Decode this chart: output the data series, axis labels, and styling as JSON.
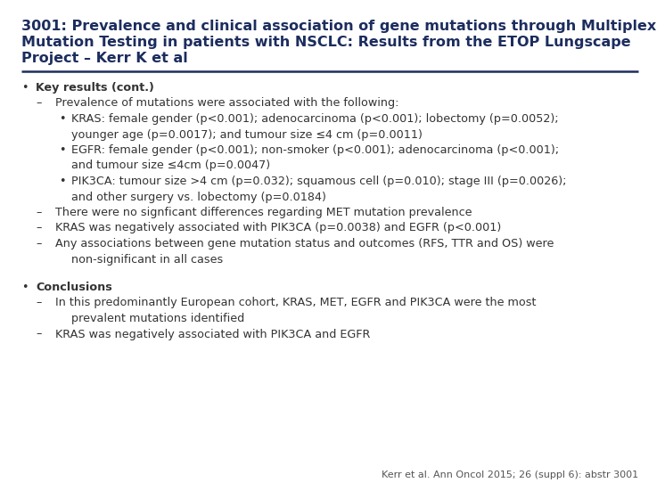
{
  "title_lines": [
    "3001: Prevalence and clinical association of gene mutations through Multiplex",
    "Mutation Testing in patients with NSCLC: Results from the ETOP Lungscape",
    "Project – Kerr K et al"
  ],
  "title_color": "#1c2d5e",
  "title_fontsize": 11.5,
  "separator_color": "#1c2d5e",
  "background_color": "#ffffff",
  "body_fontsize": 9.2,
  "body_color": "#333333",
  "footer": "Kerr et al. Ann Oncol 2015; 26 (suppl 6): abstr 3001",
  "footer_fontsize": 8.0,
  "footer_color": "#555555",
  "sections": [
    {
      "bullet": "•",
      "label": "Key results (cont.)",
      "bold": true,
      "indent": 0
    },
    {
      "bullet": "–",
      "label": "Prevalence of mutations were associated with the following:",
      "bold": false,
      "indent": 1
    },
    {
      "bullet": "•",
      "label": "KRAS: female gender (p<0.001); adenocarcinoma (p<0.001); lobectomy (p=0.0052);",
      "bold": false,
      "indent": 2
    },
    {
      "bullet": "",
      "label": "younger age (p=0.0017); and tumour size ≤4 cm (p=0.0011)",
      "bold": false,
      "indent": 3
    },
    {
      "bullet": "•",
      "label": "EGFR: female gender (p<0.001); non-smoker (p<0.001); adenocarcinoma (p<0.001);",
      "bold": false,
      "indent": 2
    },
    {
      "bullet": "",
      "label": "and tumour size ≤4cm (p=0.0047)",
      "bold": false,
      "indent": 3
    },
    {
      "bullet": "•",
      "label": "PIK3CA: tumour size >4 cm (p=0.032); squamous cell (p=0.010); stage III (p=0.0026);",
      "bold": false,
      "indent": 2
    },
    {
      "bullet": "",
      "label": "and other surgery vs. lobectomy (p=0.0184)",
      "bold": false,
      "indent": 3
    },
    {
      "bullet": "–",
      "label": "There were no signficant differences regarding MET mutation prevalence",
      "bold": false,
      "indent": 1
    },
    {
      "bullet": "–",
      "label": "KRAS was negatively associated with PIK3CA (p=0.0038) and EGFR (p<0.001)",
      "bold": false,
      "indent": 1
    },
    {
      "bullet": "–",
      "label": "Any associations between gene mutation status and outcomes (RFS, TTR and OS) were",
      "bold": false,
      "indent": 1
    },
    {
      "bullet": "",
      "label": "non-significant in all cases",
      "bold": false,
      "indent": 2
    },
    {
      "bullet": "",
      "label": "",
      "bold": false,
      "indent": 0
    },
    {
      "bullet": "•",
      "label": "Conclusions",
      "bold": true,
      "indent": 0
    },
    {
      "bullet": "–",
      "label": "In this predominantly European cohort, KRAS, MET, EGFR and PIK3CA were the most",
      "bold": false,
      "indent": 1
    },
    {
      "bullet": "",
      "label": "prevalent mutations identified",
      "bold": false,
      "indent": 2
    },
    {
      "bullet": "–",
      "label": "KRAS was negatively associated with PIK3CA and EGFR",
      "bold": false,
      "indent": 1
    }
  ]
}
